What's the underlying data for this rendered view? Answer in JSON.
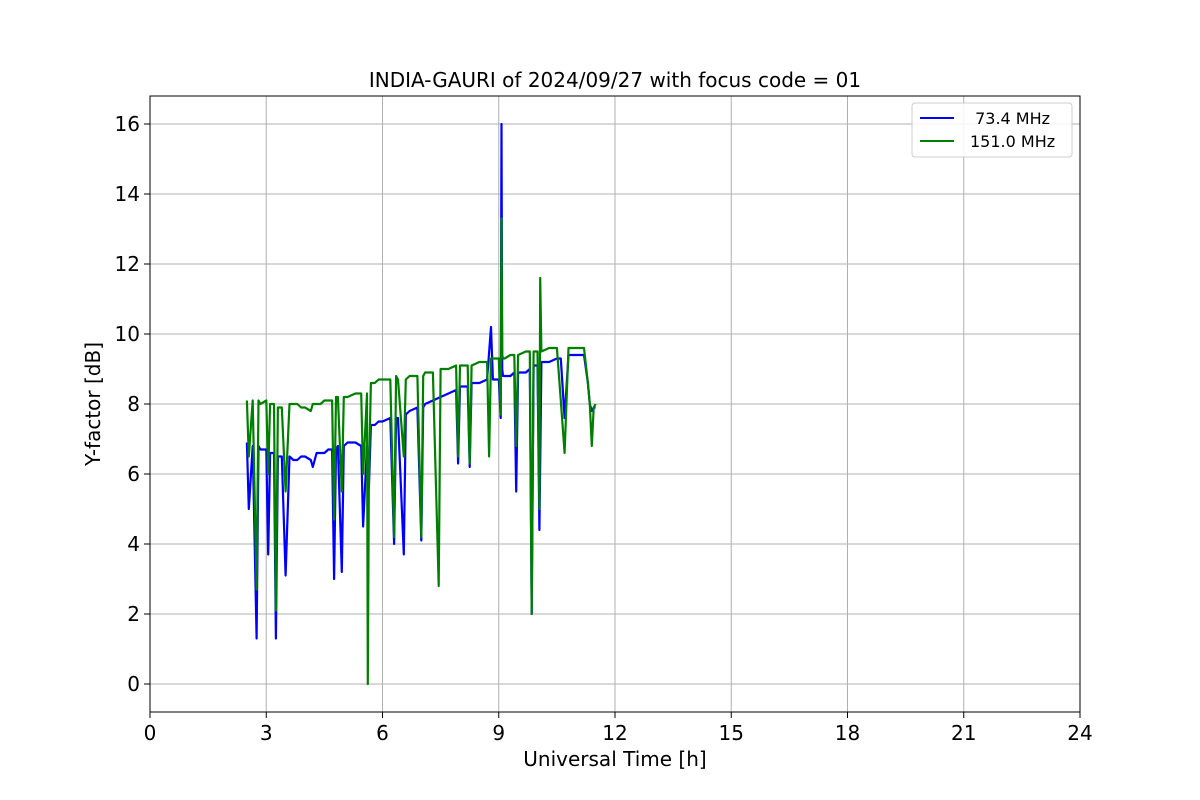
{
  "chart_data": {
    "type": "line",
    "title": "INDIA-GAURI of 2024/09/27 with focus code = 01",
    "xlabel": "Universal Time [h]",
    "ylabel": "Y-factor [dB]",
    "xlim": [
      0,
      24
    ],
    "ylim": [
      -0.8,
      16.8
    ],
    "xticks": [
      0,
      3,
      6,
      9,
      12,
      15,
      18,
      21,
      24
    ],
    "xtick_labels": [
      "0",
      "3",
      "6",
      "9",
      "12",
      "15",
      "18",
      "21",
      "24"
    ],
    "yticks": [
      0,
      2,
      4,
      6,
      8,
      10,
      12,
      14,
      16
    ],
    "ytick_labels": [
      "0",
      "2",
      "4",
      "6",
      "8",
      "10",
      "12",
      "14",
      "16"
    ],
    "grid": true,
    "legend_position": "top-right",
    "series": [
      {
        "name": " 73.4 MHz",
        "color": "#0000ff",
        "x": [
          2.5,
          2.55,
          2.65,
          2.75,
          2.8,
          2.85,
          3.0,
          3.05,
          3.1,
          3.2,
          3.25,
          3.3,
          3.4,
          3.5,
          3.6,
          3.7,
          3.8,
          3.9,
          4.0,
          4.15,
          4.2,
          4.3,
          4.4,
          4.5,
          4.6,
          4.7,
          4.75,
          4.8,
          4.85,
          4.95,
          5.0,
          5.1,
          5.3,
          5.45,
          5.5,
          5.6,
          5.65,
          5.7,
          5.8,
          5.9,
          6.0,
          6.2,
          6.3,
          6.35,
          6.4,
          6.55,
          6.6,
          6.7,
          6.9,
          7.0,
          7.05,
          7.1,
          7.3,
          7.5,
          7.7,
          7.9,
          7.95,
          8.0,
          8.2,
          8.25,
          8.3,
          8.5,
          8.7,
          8.8,
          8.85,
          8.9,
          9.0,
          9.05,
          9.07,
          9.09,
          9.11,
          9.15,
          9.3,
          9.4,
          9.45,
          9.5,
          9.7,
          9.8,
          9.85,
          9.9,
          10.0,
          10.05,
          10.1,
          10.3,
          10.5,
          10.6,
          10.7,
          10.8,
          11.0,
          11.1,
          11.2,
          11.3,
          11.35,
          11.4,
          11.45,
          11.5
        ],
        "y": [
          6.9,
          5.0,
          6.8,
          1.3,
          6.8,
          6.7,
          6.7,
          3.7,
          6.6,
          6.6,
          1.3,
          6.5,
          6.5,
          3.1,
          6.5,
          6.4,
          6.4,
          6.5,
          6.5,
          6.4,
          6.2,
          6.6,
          6.6,
          6.6,
          6.7,
          6.7,
          3.0,
          6.7,
          6.8,
          3.2,
          6.8,
          6.9,
          6.9,
          6.8,
          4.5,
          6.8,
          5.6,
          7.4,
          7.4,
          7.5,
          7.5,
          7.6,
          4.0,
          7.6,
          7.6,
          3.7,
          7.7,
          7.8,
          7.9,
          4.1,
          7.9,
          8.0,
          8.1,
          8.2,
          8.3,
          8.4,
          6.3,
          8.5,
          8.5,
          6.2,
          8.6,
          8.6,
          8.7,
          10.2,
          8.7,
          8.7,
          8.7,
          7.6,
          16.0,
          9.0,
          8.8,
          8.8,
          8.8,
          8.9,
          5.5,
          8.9,
          8.9,
          9.0,
          2.0,
          9.1,
          9.1,
          4.4,
          9.2,
          9.2,
          9.3,
          9.3,
          7.6,
          9.4,
          9.4,
          9.4,
          9.4,
          8.6,
          8.0,
          7.8,
          7.9,
          7.9
        ]
      },
      {
        "name": "151.0 MHz",
        "color": "#008000",
        "x": [
          2.5,
          2.55,
          2.65,
          2.75,
          2.8,
          2.85,
          3.0,
          3.05,
          3.1,
          3.2,
          3.25,
          3.3,
          3.4,
          3.5,
          3.6,
          3.7,
          3.8,
          3.9,
          4.0,
          4.15,
          4.2,
          4.3,
          4.4,
          4.5,
          4.6,
          4.7,
          4.75,
          4.8,
          4.85,
          4.95,
          5.0,
          5.1,
          5.3,
          5.45,
          5.5,
          5.6,
          5.62,
          5.65,
          5.7,
          5.8,
          5.9,
          6.0,
          6.2,
          6.3,
          6.35,
          6.4,
          6.55,
          6.6,
          6.7,
          6.9,
          7.0,
          7.05,
          7.1,
          7.3,
          7.45,
          7.5,
          7.7,
          7.9,
          7.95,
          8.0,
          8.2,
          8.25,
          8.3,
          8.5,
          8.7,
          8.75,
          8.8,
          8.85,
          8.9,
          9.0,
          9.05,
          9.07,
          9.09,
          9.11,
          9.15,
          9.3,
          9.4,
          9.45,
          9.5,
          9.7,
          9.8,
          9.85,
          9.9,
          10.0,
          10.05,
          10.07,
          10.1,
          10.3,
          10.5,
          10.6,
          10.7,
          10.8,
          11.0,
          11.1,
          11.2,
          11.3,
          11.35,
          11.4,
          11.45,
          11.5
        ],
        "y": [
          8.1,
          6.5,
          8.1,
          2.7,
          8.1,
          8.0,
          8.1,
          6.0,
          8.0,
          8.0,
          2.1,
          7.9,
          7.9,
          5.5,
          8.0,
          8.0,
          8.0,
          7.9,
          7.9,
          7.8,
          8.0,
          8.0,
          8.0,
          8.1,
          8.1,
          8.1,
          4.7,
          8.2,
          8.2,
          5.5,
          8.2,
          8.2,
          8.3,
          8.3,
          6.0,
          8.3,
          0.0,
          6.0,
          8.6,
          8.6,
          8.7,
          8.7,
          8.7,
          4.2,
          8.8,
          8.7,
          6.5,
          8.7,
          8.8,
          8.8,
          4.2,
          8.8,
          8.9,
          8.9,
          2.8,
          9.0,
          9.0,
          9.1,
          6.5,
          9.1,
          9.1,
          6.3,
          9.1,
          9.2,
          9.2,
          6.5,
          9.3,
          9.3,
          9.3,
          9.3,
          7.7,
          13.3,
          9.4,
          9.3,
          9.3,
          9.4,
          9.4,
          6.8,
          9.4,
          9.5,
          9.5,
          2.0,
          9.5,
          9.5,
          5.0,
          11.6,
          9.5,
          9.6,
          9.6,
          8.1,
          6.6,
          9.6,
          9.6,
          9.6,
          9.6,
          8.6,
          8.0,
          6.8,
          7.9,
          8.0
        ]
      }
    ]
  }
}
